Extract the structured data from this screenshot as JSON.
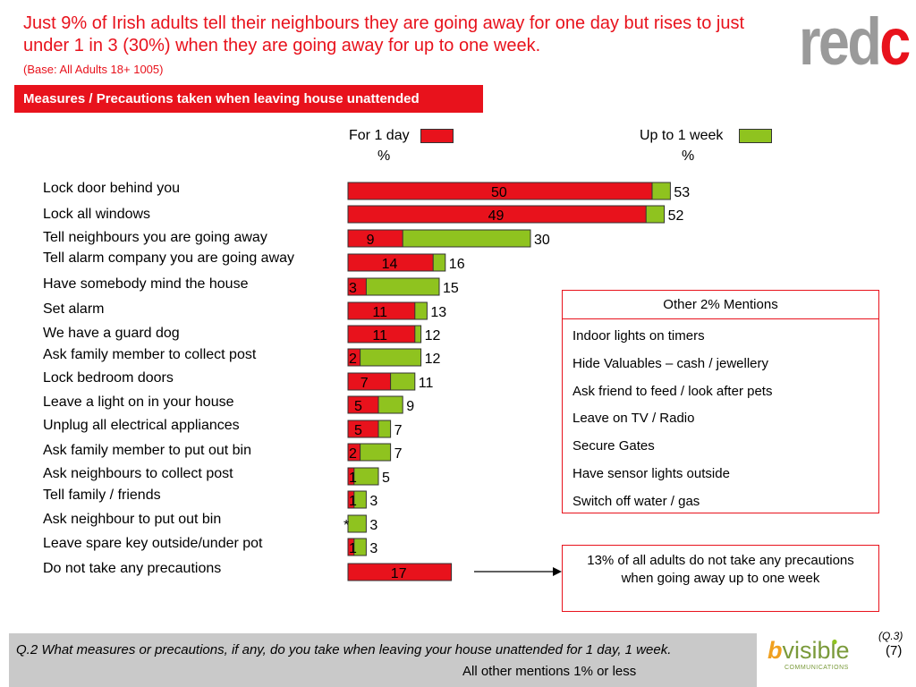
{
  "header": {
    "headline": "Just 9% of Irish adults tell their neighbours they are going away for one day but rises to just under 1 in 3 (30%) when they are going away for up to one week.",
    "base": "(Base: All Adults 18+ 1005)",
    "logo_grey": "red",
    "logo_red": "c",
    "section_title": "Measures / Precautions taken when leaving house unattended"
  },
  "legend": {
    "day_label": "For 1 day",
    "day_unit": "%",
    "week_label": "Up to 1 week",
    "week_unit": "%"
  },
  "colors": {
    "day": "#e8121c",
    "week": "#8fc31f",
    "accent": "#e8121c"
  },
  "chart_data": {
    "type": "bar",
    "categories": [
      "Lock door behind you",
      "Lock all windows",
      "Tell neighbours you are going away",
      "Tell alarm company you are going away",
      "Have somebody mind the house",
      "Set alarm",
      "We have a guard dog",
      "Ask family member to collect post",
      "Lock bedroom doors",
      "Leave a light on in your house",
      "Unplug all electrical appliances",
      "Ask family member to put out bin",
      "Ask neighbours to collect post",
      "Tell family / friends",
      "Ask neighbour to put out bin",
      "Leave spare key outside/under pot",
      "Do not take any precautions"
    ],
    "series": [
      {
        "name": "For 1 day",
        "values": [
          50,
          49,
          9,
          14,
          3,
          11,
          11,
          2,
          7,
          5,
          5,
          2,
          1,
          1,
          null,
          1,
          17
        ]
      },
      {
        "name": "Up to 1 week",
        "values": [
          53,
          52,
          30,
          16,
          15,
          13,
          12,
          12,
          11,
          9,
          7,
          7,
          5,
          3,
          3,
          3,
          null
        ]
      }
    ],
    "day_labels": [
      "50",
      "49",
      "9",
      "14",
      "3",
      "11",
      "11",
      "2",
      "7",
      "5",
      "5",
      "2",
      "1",
      "1",
      "*",
      "1",
      "17"
    ],
    "week_labels": [
      "53",
      "52",
      "30",
      "16",
      "15",
      "13",
      "12",
      "12",
      "11",
      "9",
      "7",
      "7",
      "5",
      "3",
      "3",
      "3",
      ""
    ],
    "xlim": [
      0,
      60
    ]
  },
  "mentions": {
    "title": "Other 2% Mentions",
    "items": [
      "Indoor lights on timers",
      "Hide Valuables – cash / jewellery",
      "Ask friend to feed / look after pets",
      "Leave on TV / Radio",
      "Secure Gates",
      "Have sensor lights outside",
      "Switch off water / gas"
    ]
  },
  "note": "13% of all adults do not take any precautions when going away up to one week",
  "footer": {
    "question": "Q.2 What measures or precautions, if any, do you take when leaving your house unattended for 1 day, 1 week.",
    "other_mentions": "All other mentions 1% or less",
    "logo_b": "b",
    "logo_rest": "visible",
    "logo_sub": "COMMUNICATIONS",
    "q_ref": "(Q.3)",
    "page": "(7)"
  }
}
